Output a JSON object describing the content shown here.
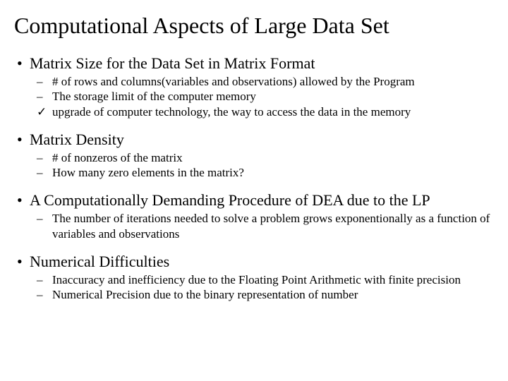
{
  "title": "Computational Aspects of Large Data Set",
  "sections": [
    {
      "heading": "Matrix Size for the Data Set in Matrix Format",
      "items": [
        {
          "marker": "dash",
          "text": "# of rows and columns(variables and observations) allowed by the Program"
        },
        {
          "marker": "dash",
          "text": "The storage limit of the computer memory"
        },
        {
          "marker": "check",
          "text": "upgrade of computer technology, the way to access the data in the memory"
        }
      ]
    },
    {
      "heading": "Matrix Density",
      "items": [
        {
          "marker": "dash",
          "text": "# of nonzeros of the matrix"
        },
        {
          "marker": "dash",
          "text": "How many zero elements in the matrix?"
        }
      ]
    },
    {
      "heading": "A Computationally Demanding Procedure of DEA due to the LP",
      "items": [
        {
          "marker": "dash",
          "text": "The number of iterations needed to solve a problem grows exponentionally as a function of variables and observations"
        }
      ]
    },
    {
      "heading": "Numerical Difficulties",
      "items": [
        {
          "marker": "dash",
          "text": "Inaccuracy and inefficiency due to the Floating Point Arithmetic with finite precision"
        },
        {
          "marker": "dash",
          "text": "Numerical Precision due to the binary representation of number"
        }
      ]
    }
  ]
}
